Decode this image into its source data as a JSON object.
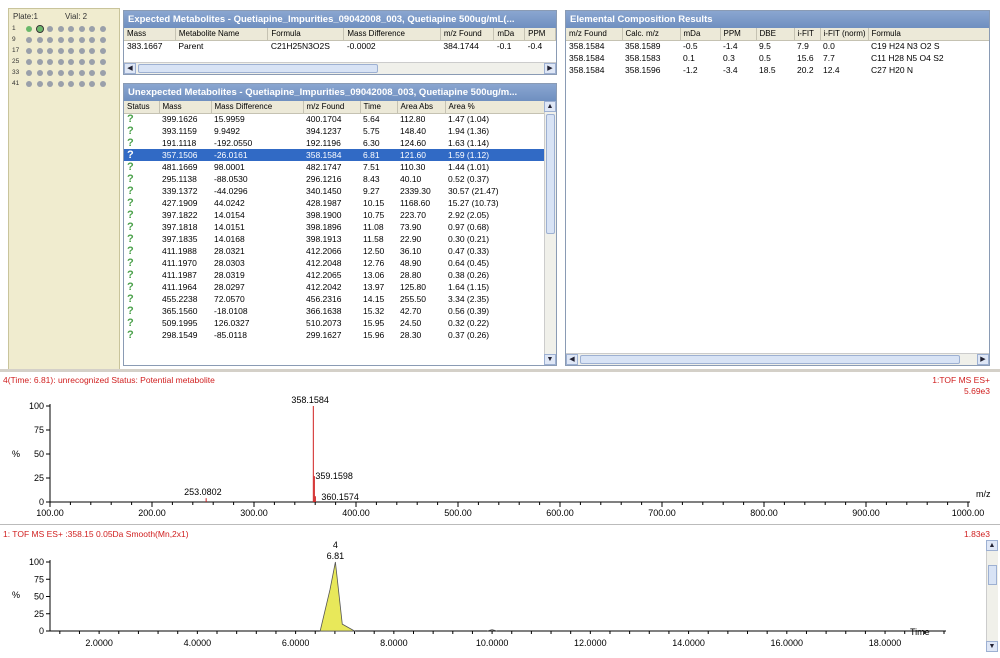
{
  "plate": {
    "plate_label": "Plate:1",
    "vial_label": "Vial: 2",
    "row_labels": [
      "1",
      "9",
      "17",
      "25",
      "33",
      "41"
    ]
  },
  "expected": {
    "title": "Expected Metabolites - Quetiapine_Impurities_09042008_003, Quetiapine 500ug/mL(...",
    "headers": [
      "Mass",
      "Metabolite Name",
      "Formula",
      "Mass Difference",
      "m/z Found",
      "mDa",
      "PPM"
    ],
    "rows": [
      [
        "383.1667",
        "Parent",
        "C21H25N3O2S",
        "-0.0002",
        "384.1744",
        "-0.1",
        "-0.4"
      ]
    ]
  },
  "unexpected": {
    "title": "Unexpected Metabolites - Quetiapine_Impurities_09042008_003, Quetiapine 500ug/m...",
    "headers": [
      "Status",
      "Mass",
      "Mass Difference",
      "m/z Found",
      "Time",
      "Area Abs",
      "Area %"
    ],
    "rows": [
      [
        "?",
        "399.1626",
        "15.9959",
        "400.1704",
        "5.64",
        "112.80",
        "1.47  (1.04)"
      ],
      [
        "?",
        "393.1159",
        "9.9492",
        "394.1237",
        "5.75",
        "148.40",
        "1.94  (1.36)"
      ],
      [
        "?",
        "191.1118",
        "-192.0550",
        "192.1196",
        "6.30",
        "124.60",
        "1.63  (1.14)"
      ],
      [
        "?",
        "357.1506",
        "-26.0161",
        "358.1584",
        "6.81",
        "121.60",
        "1.59  (1.12)"
      ],
      [
        "?",
        "481.1669",
        "98.0001",
        "482.1747",
        "7.51",
        "110.30",
        "1.44  (1.01)"
      ],
      [
        "?",
        "295.1138",
        "-88.0530",
        "296.1216",
        "8.43",
        "40.10",
        "0.52  (0.37)"
      ],
      [
        "?",
        "339.1372",
        "-44.0296",
        "340.1450",
        "9.27",
        "2339.30",
        "30.57  (21.47)"
      ],
      [
        "?",
        "427.1909",
        "44.0242",
        "428.1987",
        "10.15",
        "1168.60",
        "15.27  (10.73)"
      ],
      [
        "?",
        "397.1822",
        "14.0154",
        "398.1900",
        "10.75",
        "223.70",
        "2.92  (2.05)"
      ],
      [
        "?",
        "397.1818",
        "14.0151",
        "398.1896",
        "11.08",
        "73.90",
        "0.97  (0.68)"
      ],
      [
        "?",
        "397.1835",
        "14.0168",
        "398.1913",
        "11.58",
        "22.90",
        "0.30  (0.21)"
      ],
      [
        "?",
        "411.1988",
        "28.0321",
        "412.2066",
        "12.50",
        "36.10",
        "0.47  (0.33)"
      ],
      [
        "?",
        "411.1970",
        "28.0303",
        "412.2048",
        "12.76",
        "48.90",
        "0.64  (0.45)"
      ],
      [
        "?",
        "411.1987",
        "28.0319",
        "412.2065",
        "13.06",
        "28.80",
        "0.38  (0.26)"
      ],
      [
        "?",
        "411.1964",
        "28.0297",
        "412.2042",
        "13.97",
        "125.80",
        "1.64  (1.15)"
      ],
      [
        "?",
        "455.2238",
        "72.0570",
        "456.2316",
        "14.15",
        "255.50",
        "3.34  (2.35)"
      ],
      [
        "?",
        "365.1560",
        "-18.0108",
        "366.1638",
        "15.32",
        "42.70",
        "0.56  (0.39)"
      ],
      [
        "?",
        "509.1995",
        "126.0327",
        "510.2073",
        "15.95",
        "24.50",
        "0.32  (0.22)"
      ],
      [
        "?",
        "298.1549",
        "-85.0118",
        "299.1627",
        "15.96",
        "28.30",
        "0.37  (0.26)"
      ]
    ],
    "selected_index": 3
  },
  "elemental": {
    "title": "Elemental Composition Results",
    "headers": [
      "m/z Found",
      "Calc. m/z",
      "mDa",
      "PPM",
      "DBE",
      "i-FIT",
      "i-FIT (norm)",
      "Formula"
    ],
    "rows": [
      [
        "358.1584",
        "358.1589",
        "-0.5",
        "-1.4",
        "9.5",
        "7.9",
        "0.0",
        "C19  H24  N3  O2  S"
      ],
      [
        "358.1584",
        "358.1583",
        "0.1",
        "0.3",
        "0.5",
        "15.6",
        "7.7",
        "C11  H28  N5  O4  S2"
      ],
      [
        "358.1584",
        "358.1596",
        "-1.2",
        "-3.4",
        "18.5",
        "20.2",
        "12.4",
        "C27  H20  N"
      ]
    ]
  },
  "spectrum": {
    "header_left": "4(Time: 6.81): unrecognized Status: Potential metabolite",
    "header_right": "1:TOF MS ES+",
    "intensity": "5.69e3",
    "ylabel": "%",
    "xlabel": "m/z",
    "yticks": [
      "100",
      "75",
      "50",
      "25",
      "0"
    ],
    "xticks": [
      "100.00",
      "200.00",
      "300.00",
      "400.00",
      "500.00",
      "600.00",
      "700.00",
      "800.00",
      "900.00",
      "1000.00"
    ],
    "peak_labels": [
      "358.1584",
      "359.1598",
      "360.1574",
      "253.0802"
    ]
  },
  "chromatogram": {
    "header_left": "1: TOF MS ES+ :358.15 0.05Da Smooth(Mn,2x1)",
    "header_right": "1.83e3",
    "ylabel": "%",
    "xlabel": "Time",
    "yticks": [
      "100",
      "75",
      "50",
      "25",
      "0"
    ],
    "xticks": [
      "2.0000",
      "4.0000",
      "6.0000",
      "8.0000",
      "10.0000",
      "12.0000",
      "14.0000",
      "16.0000",
      "18.0000"
    ],
    "peak_index": "4",
    "peak_time": "6.81"
  },
  "chart_data": [
    {
      "type": "bar",
      "title": "",
      "xlabel": "m/z",
      "ylabel": "%",
      "xlim": [
        100,
        1000
      ],
      "ylim": [
        0,
        100
      ],
      "x": [
        253.0802,
        358.1584,
        359.1598,
        360.1574
      ],
      "values": [
        4,
        100,
        27,
        6
      ]
    },
    {
      "type": "line",
      "title": "",
      "xlabel": "Time",
      "ylabel": "%",
      "xlim": [
        1,
        19.2
      ],
      "ylim": [
        0,
        100
      ],
      "x": [
        6.5,
        6.7,
        6.81,
        6.95,
        7.2,
        9.9,
        10.0,
        10.1
      ],
      "values": [
        0,
        60,
        100,
        10,
        0,
        0,
        2,
        0
      ]
    }
  ],
  "colors": {
    "title_bar": "#7b97c8",
    "selection": "#316ac5",
    "spectrum_line": "#d01f1f",
    "peak_fill": "#e8e85a",
    "header_text": "#d01f1f"
  }
}
